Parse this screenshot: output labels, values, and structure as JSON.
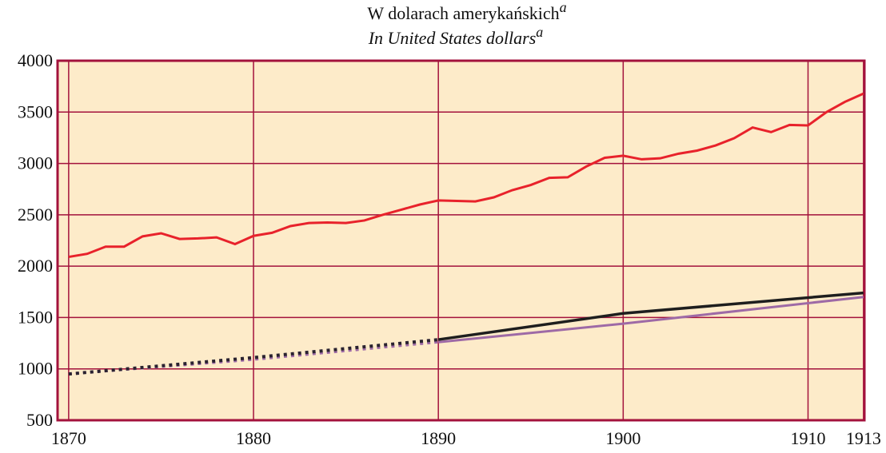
{
  "chart_data": {
    "type": "line",
    "title": "W dolarach amerykańskich",
    "title_note": "a",
    "subtitle": "In United States dollars",
    "subtitle_note": "a",
    "xlim": [
      1869.4,
      1913.05
    ],
    "xticks": [
      1870,
      1880,
      1890,
      1900,
      1910,
      1913
    ],
    "ylim": [
      500,
      4000
    ],
    "yticks": [
      500,
      1000,
      1500,
      2000,
      2500,
      3000,
      3500,
      4000
    ],
    "grid": true,
    "background": "#fdebc9",
    "grid_color": "#a3123c",
    "series": [
      {
        "color": "#e8222b",
        "dash": "none",
        "width": 3,
        "x": [
          1870,
          1871,
          1872,
          1873,
          1874,
          1875,
          1876,
          1877,
          1878,
          1879,
          1880,
          1881,
          1882,
          1883,
          1884,
          1885,
          1886,
          1887,
          1888,
          1889,
          1890,
          1891,
          1892,
          1893,
          1894,
          1895,
          1896,
          1897,
          1898,
          1899,
          1900,
          1901,
          1902,
          1903,
          1904,
          1905,
          1906,
          1907,
          1908,
          1909,
          1910,
          1911,
          1912,
          1913
        ],
        "values": [
          2090,
          2120,
          2190,
          2190,
          2290,
          2320,
          2265,
          2270,
          2280,
          2215,
          2295,
          2325,
          2390,
          2420,
          2425,
          2420,
          2445,
          2500,
          2550,
          2600,
          2640,
          2635,
          2630,
          2670,
          2740,
          2790,
          2860,
          2865,
          2970,
          3055,
          3075,
          3040,
          3050,
          3095,
          3125,
          3175,
          3245,
          3350,
          3305,
          3375,
          3370,
          3500,
          3600,
          3680
        ]
      },
      {
        "color": "#9e6aa6",
        "dash": "4 5",
        "width": 3,
        "x": [
          1870,
          1880,
          1890
        ],
        "values": [
          950,
          1090,
          1260
        ]
      },
      {
        "color": "#9e6aa6",
        "dash": "none",
        "width": 3,
        "x": [
          1890,
          1900,
          1913
        ],
        "values": [
          1260,
          1440,
          1700
        ]
      },
      {
        "color": "#2a2230",
        "dash": "4 5",
        "width": 4,
        "x": [
          1870,
          1880,
          1890
        ],
        "values": [
          950,
          1110,
          1285
        ]
      },
      {
        "color": "#1e1e1e",
        "dash": "none",
        "width": 3.5,
        "x": [
          1890,
          1900,
          1913
        ],
        "values": [
          1285,
          1540,
          1740
        ]
      }
    ]
  }
}
